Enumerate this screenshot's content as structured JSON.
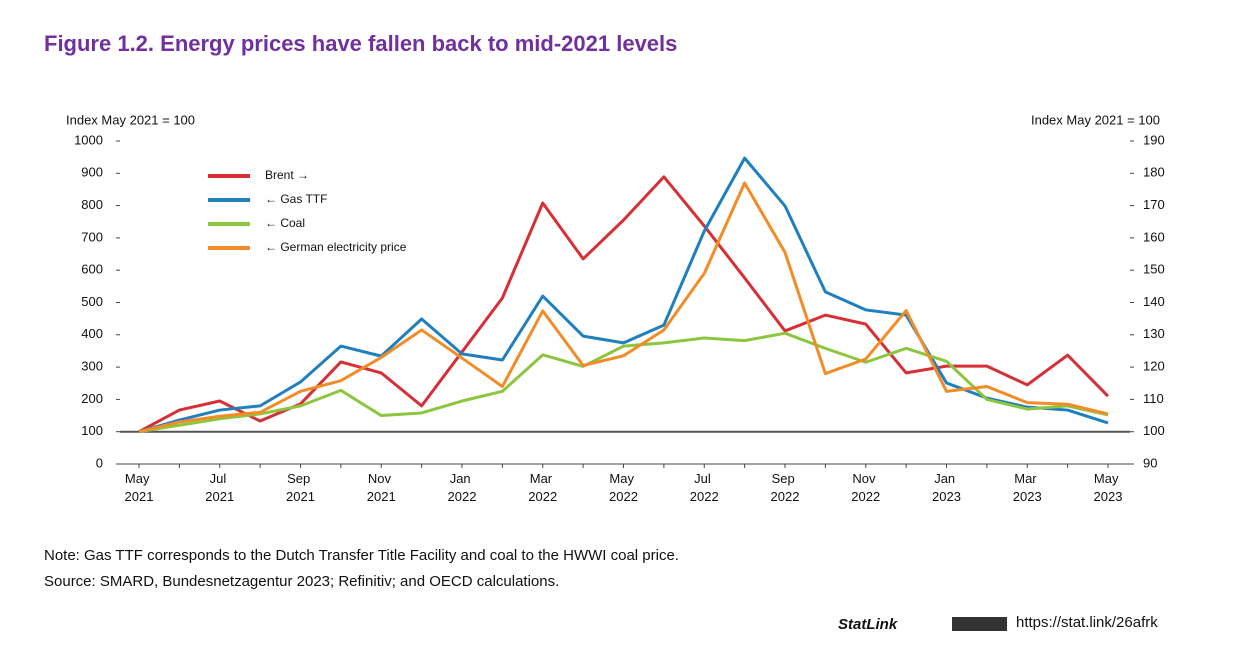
{
  "chart_data": {
    "type": "line",
    "title": "Figure 1.2. Energy prices have fallen back to mid-2021 levels",
    "y_label": "Index May 2021 = 100",
    "y2_label": "Index May 2021 = 100",
    "categories": [
      "May 2021",
      null,
      "Jul 2021",
      null,
      "Sep 2021",
      null,
      "Nov 2021",
      null,
      "Jan 2022",
      null,
      "Mar 2022",
      null,
      "May 2022",
      null,
      "Jul 2022",
      null,
      "Sep 2022",
      null,
      "Nov 2022",
      null,
      "Jan 2023",
      null,
      "Mar 2023",
      null,
      "May 2023"
    ],
    "ylim": [
      0,
      1000
    ],
    "yticks": [
      0,
      100,
      200,
      300,
      400,
      500,
      600,
      700,
      800,
      900,
      1000
    ],
    "y2lim": [
      90,
      190
    ],
    "y2ticks": [
      90,
      100,
      110,
      120,
      130,
      140,
      150,
      160,
      170,
      180,
      190
    ],
    "reference_line": 100,
    "series": [
      {
        "name": "Brent →",
        "color": "#d62f36",
        "axis": "y2",
        "values": [
          100,
          106.7,
          109.5,
          103.3,
          108.6,
          121.6,
          118.2,
          108,
          124.7,
          141.4,
          170.8,
          153.5,
          165.5,
          178.9,
          163.7,
          147.6,
          131.2,
          136.1,
          133.3,
          118.2,
          120.3,
          120.3,
          114.5,
          123.7,
          111
        ]
      },
      {
        "name": "← Gas TTF",
        "color": "#1f7fbf",
        "values": [
          100,
          136,
          167,
          180,
          254,
          365,
          334,
          449,
          341,
          322,
          520,
          396,
          375,
          430,
          721,
          947,
          799,
          533,
          477,
          461,
          251,
          204,
          176,
          167,
          127
        ]
      },
      {
        "name": "← Coal",
        "color": "#8cc63f",
        "values": [
          100,
          120,
          140,
          155,
          180,
          228,
          150,
          158,
          195,
          225,
          338,
          302,
          365,
          375,
          390,
          382,
          405,
          358,
          315,
          358,
          318,
          200,
          170,
          180,
          152
        ]
      },
      {
        "name": "← German electricity price",
        "color": "#f28c28",
        "values": [
          100,
          130,
          148,
          160,
          225,
          258,
          330,
          415,
          328,
          240,
          474,
          305,
          335,
          415,
          590,
          870,
          655,
          280,
          325,
          475,
          225,
          240,
          190,
          185,
          155
        ]
      }
    ],
    "note": "Note: Gas TTF corresponds to the Dutch Transfer Title Facility and coal to the HWWI coal price.",
    "source": "Source: SMARD, Bundesnetzagentur 2023; Refinitiv; and OECD calculations.",
    "statlink_label": "StatLink",
    "statlink_url": "https://stat.link/26afrk"
  }
}
